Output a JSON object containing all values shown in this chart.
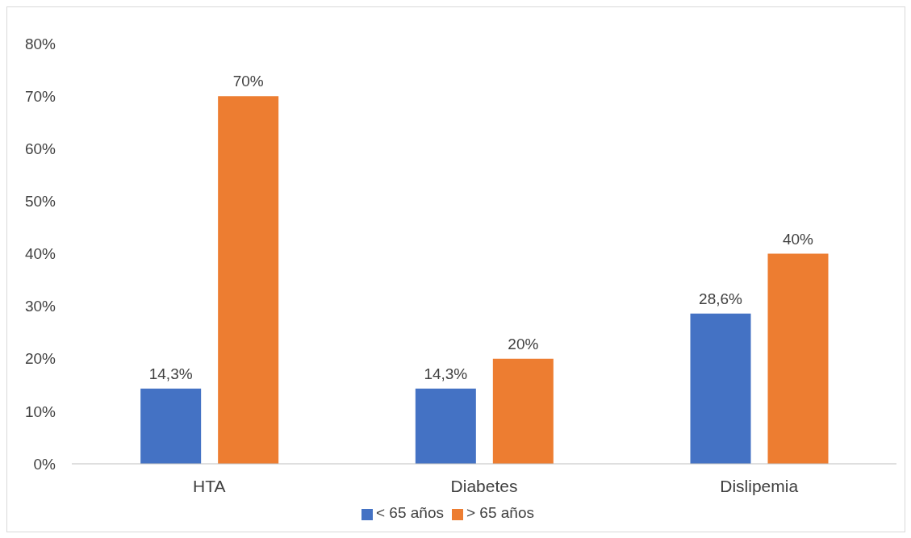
{
  "chart_data": {
    "type": "bar",
    "categories": [
      "HTA",
      "Diabetes",
      "Dislipemia"
    ],
    "series": [
      {
        "name": "< 65 años",
        "color": "#4472c4",
        "values": [
          14.3,
          14.3,
          28.6
        ],
        "value_labels": [
          "14,3%",
          "14,3%",
          "28,6%"
        ]
      },
      {
        "name": "> 65 años",
        "color": "#ed7d31",
        "values": [
          70,
          20,
          40
        ],
        "value_labels": [
          "70%",
          "20%",
          "40%"
        ]
      }
    ],
    "ylim": [
      0,
      80
    ],
    "yticks": [
      {
        "value": 0,
        "label": "0%"
      },
      {
        "value": 10,
        "label": "10%"
      },
      {
        "value": 20,
        "label": "20%"
      },
      {
        "value": 30,
        "label": "30%"
      },
      {
        "value": 40,
        "label": "40%"
      },
      {
        "value": 50,
        "label": "50%"
      },
      {
        "value": 60,
        "label": "60%"
      },
      {
        "value": 70,
        "label": "70%"
      },
      {
        "value": 80,
        "label": "80%"
      }
    ],
    "grid": false,
    "legend": "bottom"
  }
}
